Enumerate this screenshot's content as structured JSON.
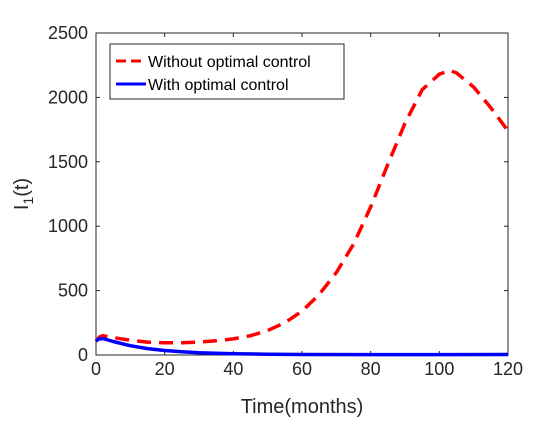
{
  "chart_data": {
    "type": "line",
    "xlabel": "Time(months)",
    "ylabel": "I",
    "ylabel_subscript": "1",
    "ylabel_suffix": "(t)",
    "xlim": [
      0,
      120
    ],
    "ylim": [
      0,
      2500
    ],
    "x_ticks": [
      0,
      20,
      40,
      60,
      80,
      100,
      120
    ],
    "y_ticks": [
      0,
      500,
      1000,
      1500,
      2000,
      2500
    ],
    "grid": false,
    "legend_position": "top-left",
    "series": [
      {
        "name": "Without optimal control",
        "color": "#ff0000",
        "style": "dashed",
        "x": [
          0,
          1,
          2,
          3,
          5,
          10,
          15,
          20,
          25,
          30,
          35,
          40,
          45,
          50,
          55,
          60,
          65,
          70,
          75,
          80,
          85,
          90,
          95,
          100,
          103,
          105,
          110,
          115,
          120
        ],
        "y": [
          105,
          140,
          150,
          145,
          135,
          115,
          100,
          95,
          95,
          100,
          110,
          125,
          150,
          190,
          250,
          340,
          470,
          640,
          860,
          1150,
          1480,
          1800,
          2060,
          2180,
          2210,
          2190,
          2080,
          1920,
          1740
        ]
      },
      {
        "name": "With optimal control",
        "color": "#0000ff",
        "style": "solid",
        "x": [
          0,
          1,
          2,
          3,
          5,
          8,
          10,
          15,
          20,
          25,
          30,
          40,
          50,
          60,
          80,
          100,
          120
        ],
        "y": [
          110,
          125,
          128,
          120,
          105,
          85,
          72,
          50,
          35,
          25,
          18,
          10,
          6,
          4,
          3,
          3,
          4
        ]
      }
    ]
  }
}
